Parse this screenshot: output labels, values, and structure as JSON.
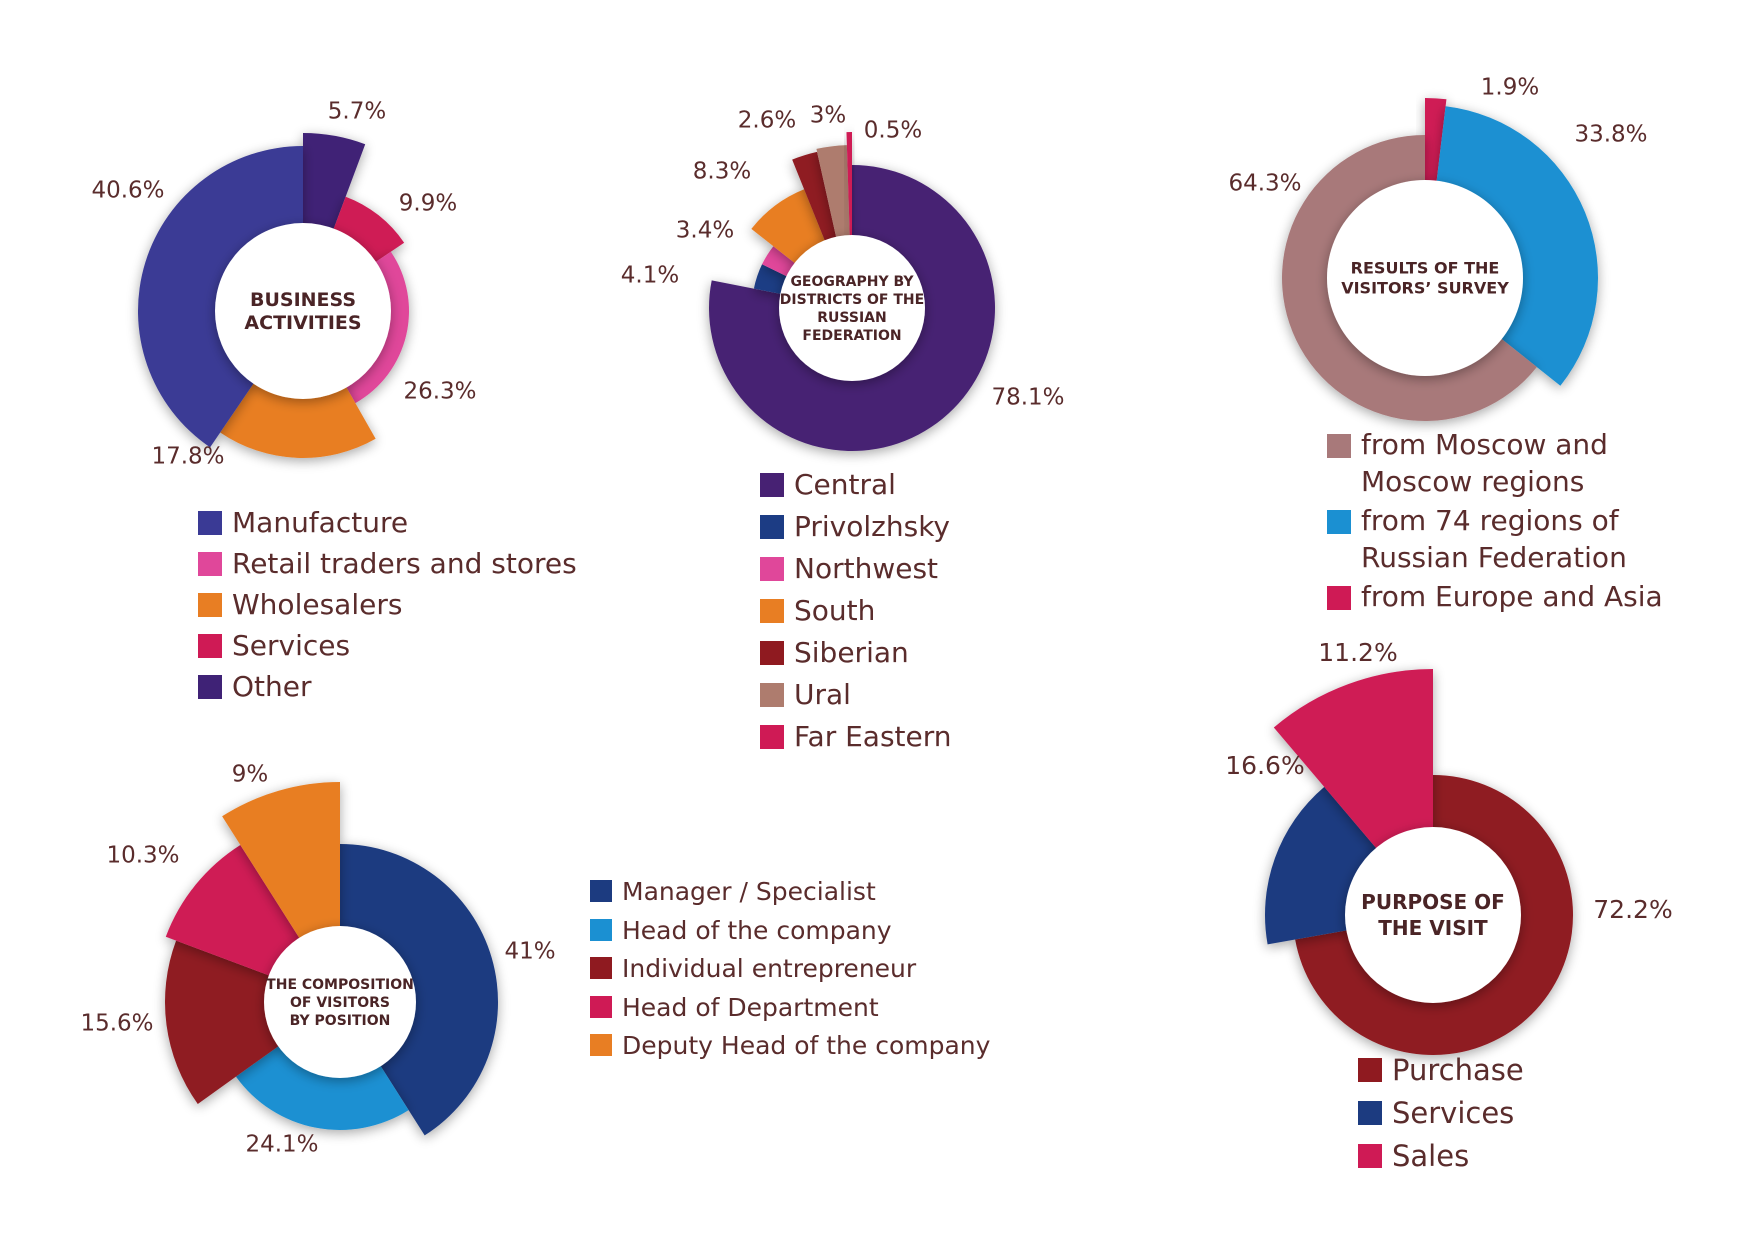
{
  "chart_data": [
    {
      "type": "pie",
      "title": "BUSINESS ACTIVITIES",
      "categories": [
        "Manufacture",
        "Retail traders and stores",
        "Wholesalers",
        "Services",
        "Other"
      ],
      "values": [
        40.6,
        26.3,
        17.8,
        9.9,
        5.7
      ],
      "value_labels": [
        "40.6%",
        "26.3%",
        "17.8%",
        "9.9%",
        "5.7%"
      ],
      "legend": [
        {
          "label": "Manufacture",
          "color": "#3a3a95"
        },
        {
          "label": "Retail traders and stores",
          "color": "#e0479a"
        },
        {
          "label": "Wholesalers",
          "color": "#e87e23"
        },
        {
          "label": "Services",
          "color": "#cf1a55"
        },
        {
          "label": "Other",
          "color": "#3f2276"
        }
      ],
      "legend_position": "bottom"
    },
    {
      "type": "pie",
      "title": "GEOGRAPHY BY DISTRICTS OF THE RUSSIAN FEDERATION",
      "categories": [
        "Central",
        "Privolzhsky",
        "Northwest",
        "South",
        "Siberian",
        "Ural",
        "Far Eastern"
      ],
      "values": [
        78.1,
        4.1,
        3.4,
        8.3,
        2.6,
        3.0,
        0.5
      ],
      "value_labels": [
        "78.1%",
        "4.1%",
        "3.4%",
        "8.3%",
        "2.6%",
        "3%",
        "0.5%"
      ],
      "legend": [
        {
          "label": "Central",
          "color": "#472173"
        },
        {
          "label": "Privolzhsky",
          "color": "#1c3c84"
        },
        {
          "label": "Northwest",
          "color": "#e0479a"
        },
        {
          "label": "South",
          "color": "#e87e23"
        },
        {
          "label": "Siberian",
          "color": "#8f1a20"
        },
        {
          "label": "Ural",
          "color": "#ae7c6e"
        },
        {
          "label": "Far Eastern",
          "color": "#cf1a55"
        }
      ],
      "legend_position": "bottom"
    },
    {
      "type": "pie",
      "title": "RESULTS OF THE VISITORS’ SURVEY",
      "categories": [
        "from Moscow and Moscow regions",
        "from 74 regions of Russian Federation",
        "from Europe and Asia"
      ],
      "values": [
        64.3,
        33.8,
        1.9
      ],
      "value_labels": [
        "64.3%",
        "33.8%",
        "1.9%"
      ],
      "legend": [
        {
          "label": "from Moscow and\nMoscow regions",
          "color": "#a8797a"
        },
        {
          "label": "from 74 regions of\nRussian Federation",
          "color": "#1b90d2"
        },
        {
          "label": "from Europe and Asia",
          "color": "#cf1a55"
        }
      ],
      "legend_position": "bottom"
    },
    {
      "type": "pie",
      "title": "THE COMPOSITION OF VISITORS BY POSITION",
      "categories": [
        "Manager / Specialist",
        "Head of the company",
        "Individual entrepreneur",
        "Head of Department",
        "Deputy Head of the company"
      ],
      "values": [
        41,
        24.1,
        15.6,
        10.3,
        9
      ],
      "value_labels": [
        "41%",
        "24.1%",
        "15.6%",
        "10.3%",
        "9%"
      ],
      "legend": [
        {
          "label": "Manager / Specialist",
          "color": "#1c3b80"
        },
        {
          "label": "Head of the company",
          "color": "#1b90d2"
        },
        {
          "label": "Individual entrepreneur",
          "color": "#8f1a20"
        },
        {
          "label": "Head of Department",
          "color": "#cf1a55"
        },
        {
          "label": "Deputy Head of the company",
          "color": "#e87e23"
        }
      ],
      "legend_position": "right"
    },
    {
      "type": "pie",
      "title": "PURPOSE OF THE VISIT",
      "categories": [
        "Purchase",
        "Services",
        "Sales"
      ],
      "values": [
        72.2,
        16.6,
        11.2
      ],
      "value_labels": [
        "72.2%",
        "16.6%",
        "11.2%"
      ],
      "legend": [
        {
          "label": "Purchase",
          "color": "#8f1a20"
        },
        {
          "label": "Services",
          "color": "#1c3b80"
        },
        {
          "label": "Sales",
          "color": "#cf1a55"
        }
      ],
      "legend_position": "bottom"
    }
  ]
}
